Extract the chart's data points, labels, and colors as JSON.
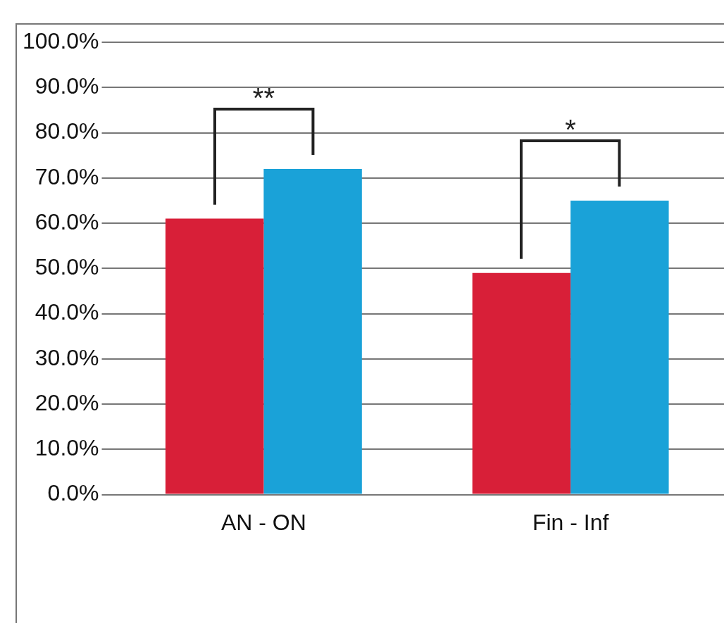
{
  "chart_data": {
    "type": "bar",
    "categories": [
      "AN - ON",
      "Fin - Inf"
    ],
    "series": [
      {
        "color": "#d81f38",
        "values": [
          61,
          49
        ]
      },
      {
        "color": "#1aa2d8",
        "values": [
          72,
          65
        ]
      }
    ],
    "ylim": [
      0,
      100
    ],
    "yticks": [
      {
        "value": 0,
        "label": "0.0%"
      },
      {
        "value": 10,
        "label": "10.0%"
      },
      {
        "value": 20,
        "label": "20.0%"
      },
      {
        "value": 30,
        "label": "30.0%"
      },
      {
        "value": 40,
        "label": "40.0%"
      },
      {
        "value": 50,
        "label": "50.0%"
      },
      {
        "value": 60,
        "label": "60.0%"
      },
      {
        "value": 70,
        "label": "70.0%"
      },
      {
        "value": 80,
        "label": "80.0%"
      },
      {
        "value": 90,
        "label": "90.0%"
      },
      {
        "value": 100,
        "label": "100.0%"
      }
    ],
    "grid": "y",
    "legend": false,
    "annotations": [
      "**",
      "*"
    ]
  }
}
